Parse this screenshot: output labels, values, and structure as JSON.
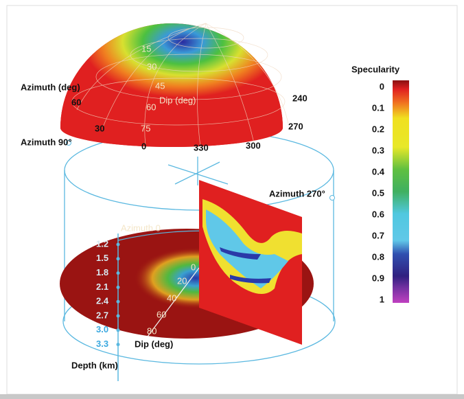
{
  "dome": {
    "dip_labels": [
      "15",
      "30",
      "45",
      "60",
      "75"
    ],
    "dip_title": "Dip (deg)",
    "azimuth_title": "Azimuth (deg)",
    "azimuth_labels": [
      "60",
      "30",
      "0",
      "330",
      "300",
      "270",
      "240"
    ]
  },
  "cylinder": {
    "azimuth_90": "Azimuth 90°",
    "azimuth_270": "Azimuth 270°",
    "azimuth_0": "Azimuth 0"
  },
  "disk": {
    "dip_labels": [
      "0",
      "20",
      "40",
      "60",
      "80"
    ],
    "dip_title": "Dip (deg)"
  },
  "depth_axis": {
    "labels": [
      "1.2",
      "1.5",
      "1.8",
      "2.1",
      "2.4",
      "2.7",
      "3.0",
      "3.3"
    ],
    "title": "Depth (km)"
  },
  "colorbar": {
    "title": "Specularity",
    "labels": [
      "0",
      "0.1",
      "0.2",
      "0.3",
      "0.4",
      "0.5",
      "0.6",
      "0.7",
      "0.8",
      "0.9",
      "1"
    ]
  }
}
